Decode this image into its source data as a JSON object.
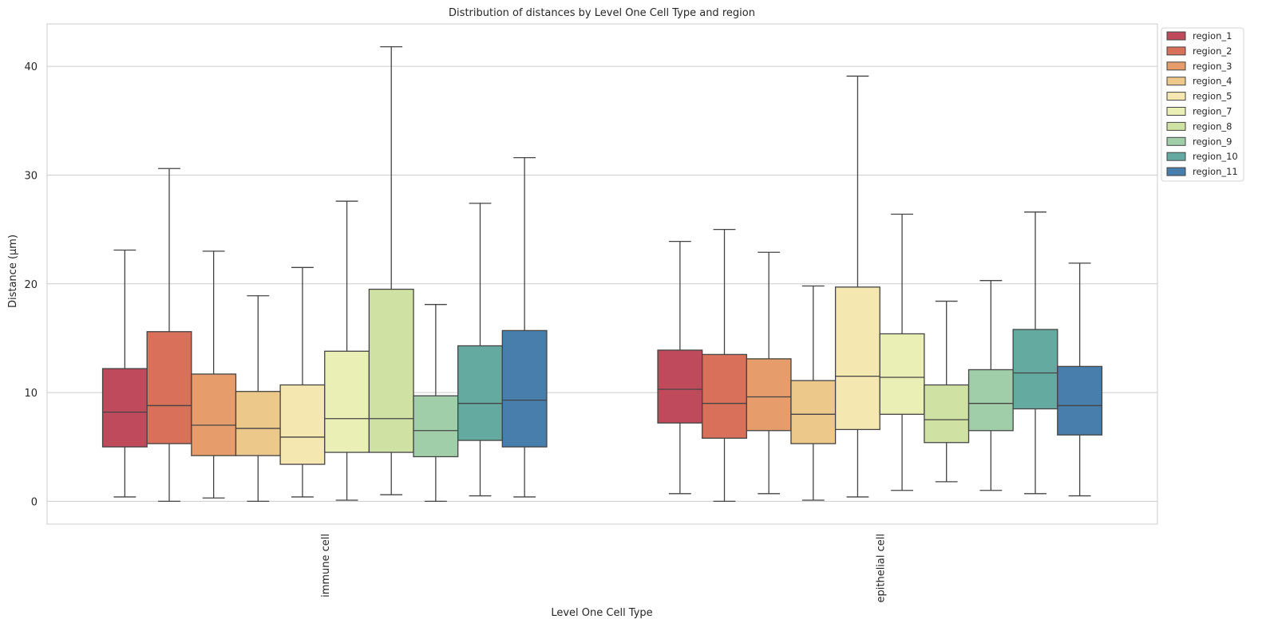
{
  "chart_data": {
    "type": "box",
    "title": "Distribution of distances by Level One Cell Type and region",
    "xlabel": "Level One Cell Type",
    "ylabel": "Distance (µm)",
    "ylim": [
      -2.1,
      43.9
    ],
    "yticks": [
      0,
      10,
      20,
      30,
      40
    ],
    "grid": true,
    "legend_position": "outside-top-right",
    "categories": [
      "immune cell",
      "epithelial cell"
    ],
    "series": [
      {
        "name": "region_1",
        "color": "#be4a5b",
        "boxes": [
          {
            "whislo": 0.4,
            "q1": 5.0,
            "med": 8.2,
            "q3": 12.2,
            "whishi": 23.1
          },
          {
            "whislo": 0.7,
            "q1": 7.2,
            "med": 10.3,
            "q3": 13.9,
            "whishi": 23.9
          }
        ]
      },
      {
        "name": "region_2",
        "color": "#d8705a",
        "boxes": [
          {
            "whislo": 0.0,
            "q1": 5.3,
            "med": 8.8,
            "q3": 15.6,
            "whishi": 30.6
          },
          {
            "whislo": 0.0,
            "q1": 5.8,
            "med": 9.0,
            "q3": 13.5,
            "whishi": 25.0
          }
        ]
      },
      {
        "name": "region_3",
        "color": "#e69c6b",
        "boxes": [
          {
            "whislo": 0.3,
            "q1": 4.2,
            "med": 7.0,
            "q3": 11.7,
            "whishi": 23.0
          },
          {
            "whislo": 0.7,
            "q1": 6.5,
            "med": 9.6,
            "q3": 13.1,
            "whishi": 22.9
          }
        ]
      },
      {
        "name": "region_4",
        "color": "#edc88b",
        "boxes": [
          {
            "whislo": 0.0,
            "q1": 4.2,
            "med": 6.7,
            "q3": 10.1,
            "whishi": 18.9
          },
          {
            "whislo": 0.1,
            "q1": 5.3,
            "med": 8.0,
            "q3": 11.1,
            "whishi": 19.8
          }
        ]
      },
      {
        "name": "region_5",
        "color": "#f4e8b0",
        "boxes": [
          {
            "whislo": 0.4,
            "q1": 3.4,
            "med": 5.9,
            "q3": 10.7,
            "whishi": 21.5
          },
          {
            "whislo": 0.4,
            "q1": 6.6,
            "med": 11.5,
            "q3": 19.7,
            "whishi": 39.1
          }
        ]
      },
      {
        "name": "region_7",
        "color": "#eaf0b5",
        "boxes": [
          {
            "whislo": 0.1,
            "q1": 4.5,
            "med": 7.6,
            "q3": 13.8,
            "whishi": 27.6
          },
          {
            "whislo": 1.0,
            "q1": 8.0,
            "med": 11.4,
            "q3": 15.4,
            "whishi": 26.4
          }
        ]
      },
      {
        "name": "region_8",
        "color": "#cfe1a3",
        "boxes": [
          {
            "whislo": 0.6,
            "q1": 4.5,
            "med": 7.6,
            "q3": 19.5,
            "whishi": 41.8
          },
          {
            "whislo": 1.8,
            "q1": 5.4,
            "med": 7.5,
            "q3": 10.7,
            "whishi": 18.4
          }
        ]
      },
      {
        "name": "region_9",
        "color": "#a0cea8",
        "boxes": [
          {
            "whislo": 0.0,
            "q1": 4.1,
            "med": 6.5,
            "q3": 9.7,
            "whishi": 18.1
          },
          {
            "whislo": 1.0,
            "q1": 6.5,
            "med": 9.0,
            "q3": 12.1,
            "whishi": 20.3
          }
        ]
      },
      {
        "name": "region_10",
        "color": "#65aaa0",
        "boxes": [
          {
            "whislo": 0.5,
            "q1": 5.6,
            "med": 9.0,
            "q3": 14.3,
            "whishi": 27.4
          },
          {
            "whislo": 0.7,
            "q1": 8.5,
            "med": 11.8,
            "q3": 15.8,
            "whishi": 26.6
          }
        ]
      },
      {
        "name": "region_11",
        "color": "#477eac",
        "boxes": [
          {
            "whislo": 0.4,
            "q1": 5.0,
            "med": 9.3,
            "q3": 15.7,
            "whishi": 31.6
          },
          {
            "whislo": 0.5,
            "q1": 6.1,
            "med": 8.8,
            "q3": 12.4,
            "whishi": 21.9
          }
        ]
      }
    ]
  }
}
